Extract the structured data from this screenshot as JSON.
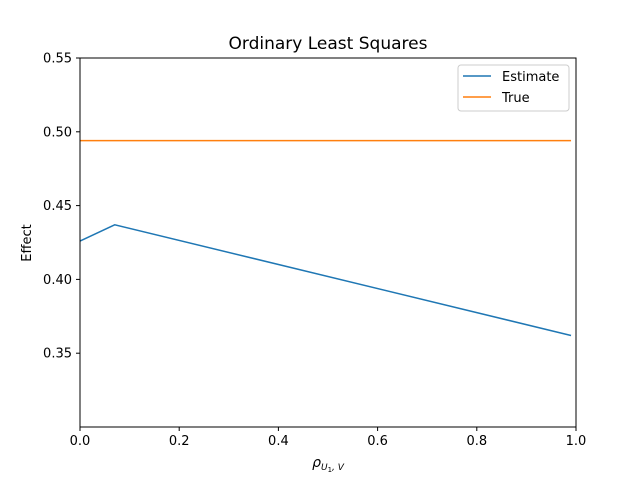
{
  "chart_data": {
    "type": "line",
    "title": "Ordinary Least Squares",
    "xlabel": "ρ",
    "xlabel_sub": "U",
    "xlabel_sub2": "1",
    "xlabel_sub3": ", V",
    "ylabel": "Effect",
    "xlim": [
      0.0,
      1.0
    ],
    "ylim": [
      0.3,
      0.55
    ],
    "xticks": [
      0.0,
      0.2,
      0.4,
      0.6,
      0.8,
      1.0
    ],
    "xtick_labels": [
      "0.0",
      "0.2",
      "0.4",
      "0.6",
      "0.8",
      "1.0"
    ],
    "yticks": [
      0.35,
      0.4,
      0.45,
      0.5,
      0.55
    ],
    "ytick_labels": [
      "0.35",
      "0.40",
      "0.45",
      "0.50",
      "0.55"
    ],
    "grid": false,
    "legend_position": "top-right",
    "series": [
      {
        "name": "Estimate",
        "color": "#1f77b4",
        "x": [
          0.0,
          0.07,
          0.99
        ],
        "y": [
          0.426,
          0.437,
          0.362
        ]
      },
      {
        "name": "True",
        "color": "#ff7f0e",
        "x": [
          0.0,
          0.99
        ],
        "y": [
          0.494,
          0.494
        ]
      }
    ]
  }
}
